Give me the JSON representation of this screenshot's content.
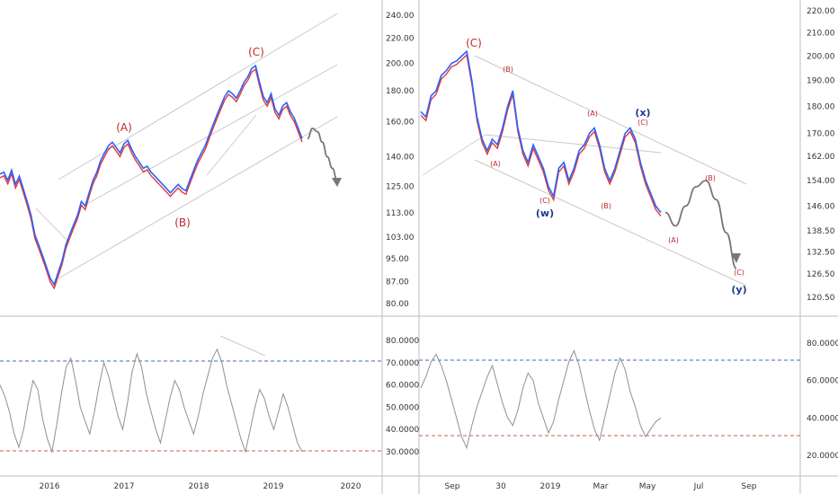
{
  "chart_data": [
    {
      "type": "line",
      "panel": "left-price",
      "y_ticks": [
        "240.00",
        "220.00",
        "200.00",
        "180.00",
        "160.00",
        "140.00",
        "125.00",
        "113.00",
        "103.00",
        "95.00",
        "87.00",
        "80.00"
      ],
      "y_tick_values": [
        240,
        220,
        200,
        180,
        160,
        140,
        125,
        113,
        103,
        95,
        87,
        80
      ],
      "scale": "log",
      "x_ticks": [
        "2016",
        "2017",
        "2018",
        "2019",
        "2020"
      ],
      "series": [
        {
          "values": [
            131,
            132,
            128,
            133,
            126,
            130,
            124,
            118,
            112,
            104,
            100,
            96,
            92,
            88,
            86,
            90,
            94,
            100,
            104,
            108,
            112,
            118,
            116,
            122,
            128,
            132,
            138,
            142,
            146,
            148,
            145,
            142,
            147,
            149,
            144,
            140,
            137,
            134,
            135,
            132,
            130,
            128,
            126,
            124,
            122,
            124,
            126,
            124,
            123,
            128,
            133,
            138,
            142,
            146,
            152,
            158,
            164,
            170,
            176,
            180,
            178,
            175,
            180,
            186,
            190,
            196,
            198,
            186,
            176,
            172,
            178,
            168,
            164,
            170,
            172,
            166,
            162,
            156,
            150
          ]
        }
      ],
      "forecast": [
        150,
        156,
        154,
        148,
        140,
        134,
        128
      ],
      "annotations": [
        {
          "label": "(A)",
          "x_index": 30,
          "y": 156
        },
        {
          "label": "(B)",
          "x_index": 49,
          "y": 112
        },
        {
          "label": "(C)",
          "x_index": 64,
          "y": 207
        }
      ]
    },
    {
      "type": "line",
      "panel": "right-price",
      "y_ticks": [
        "220.00",
        "210.00",
        "200.00",
        "190.00",
        "180.00",
        "170.00",
        "162.00",
        "154.00",
        "146.00",
        "138.50",
        "132.50",
        "126.50",
        "120.50"
      ],
      "y_tick_values": [
        220,
        210,
        200,
        190,
        180,
        170,
        162,
        154,
        146,
        138.5,
        132.5,
        126.5,
        120.5
      ],
      "scale": "log",
      "x_ticks": [
        "Sep",
        "30",
        "2019",
        "Mar",
        "May",
        "Jul",
        "Sep"
      ],
      "series": [
        {
          "values": [
            178,
            176,
            184,
            186,
            192,
            194,
            197,
            198,
            200,
            202,
            190,
            176,
            168,
            164,
            168,
            166,
            172,
            180,
            186,
            172,
            164,
            160,
            166,
            162,
            158,
            152,
            149,
            158,
            160,
            154,
            158,
            164,
            166,
            170,
            172,
            166,
            158,
            154,
            158,
            164,
            170,
            172,
            168,
            160,
            154,
            150,
            146,
            144
          ]
        }
      ],
      "forecast": [
        144,
        140,
        146,
        152,
        154,
        148,
        138,
        128
      ],
      "annotations": [
        {
          "label": "(C)",
          "color": "red",
          "size": "large"
        },
        {
          "label": "(B)",
          "color": "red"
        },
        {
          "label": "(A)",
          "color": "red"
        },
        {
          "label": "(C)",
          "color": "red"
        },
        {
          "label": "(w)",
          "color": "blue"
        },
        {
          "label": "(A)",
          "color": "red"
        },
        {
          "label": "(B)",
          "color": "red"
        },
        {
          "label": "(x)",
          "color": "blue"
        },
        {
          "label": "(C)",
          "color": "red"
        },
        {
          "label": "(A)",
          "color": "red"
        },
        {
          "label": "(B)",
          "color": "red"
        },
        {
          "label": "(C)",
          "color": "red"
        },
        {
          "label": "(y)",
          "color": "blue"
        }
      ]
    },
    {
      "type": "line",
      "panel": "left-rsi",
      "y_ticks": [
        "80.0000",
        "70.0000",
        "60.0000",
        "50.0000",
        "40.0000",
        "30.0000"
      ],
      "y_tick_values": [
        80,
        70,
        60,
        50,
        40,
        30
      ],
      "overbought": 70,
      "oversold": 30,
      "series": [
        {
          "values": [
            60,
            55,
            48,
            38,
            32,
            40,
            52,
            62,
            58,
            45,
            36,
            30,
            42,
            56,
            68,
            72,
            62,
            50,
            44,
            38,
            48,
            60,
            70,
            64,
            55,
            46,
            40,
            52,
            66,
            74,
            68,
            56,
            48,
            40,
            34,
            44,
            54,
            62,
            58,
            50,
            44,
            38,
            46,
            56,
            64,
            72,
            76,
            70,
            60,
            52,
            44,
            36,
            30,
            40,
            50,
            58,
            54,
            46,
            40,
            48,
            56,
            50,
            42,
            34,
            30
          ]
        }
      ]
    },
    {
      "type": "line",
      "panel": "right-rsi",
      "y_ticks": [
        "80.0000",
        "60.0000",
        "40.0000",
        "20.0000"
      ],
      "y_tick_values": [
        80,
        60,
        40,
        20
      ],
      "overbought": 70,
      "oversold": 30,
      "series": [
        {
          "values": [
            56,
            62,
            70,
            74,
            68,
            60,
            50,
            40,
            30,
            24,
            36,
            46,
            54,
            62,
            68,
            58,
            48,
            40,
            36,
            44,
            56,
            64,
            60,
            48,
            40,
            32,
            38,
            50,
            60,
            70,
            76,
            68,
            56,
            44,
            34,
            28,
            40,
            52,
            64,
            72,
            66,
            54,
            46,
            36,
            30,
            34,
            38,
            40
          ]
        }
      ]
    }
  ],
  "colors": {
    "price_line": "#2962ff",
    "price_shadow": "#e53935",
    "rsi_line": "#909090",
    "overbought_line": "#3a6ea5",
    "oversold_line": "#d9534f",
    "channel": "#c8c8c8",
    "forecast": "#777777",
    "wave_red": "#c0282d",
    "wave_blue": "#1a3a8f"
  }
}
